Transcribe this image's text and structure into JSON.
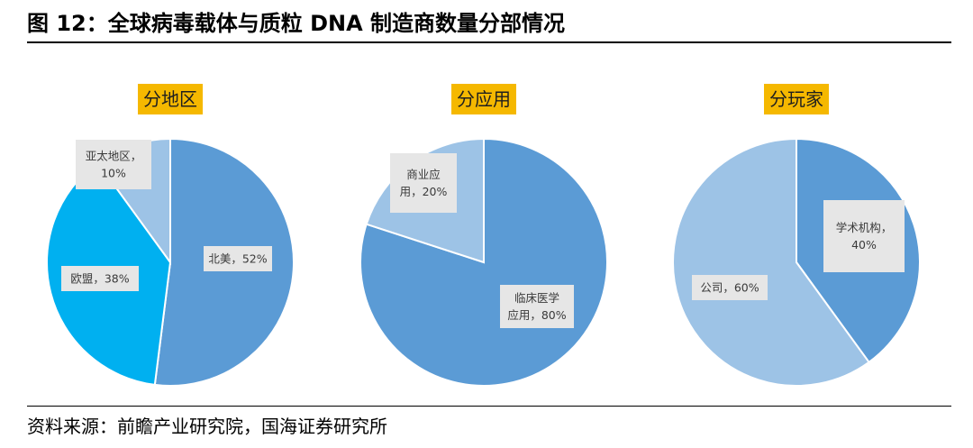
{
  "figure": {
    "title": "图 12：全球病毒载体与质粒 DNA 制造商数量分部情况",
    "source": "资料来源：前瞻产业研究院，国海证券研究所"
  },
  "colors": {
    "title_box": "#f5b800",
    "label_box": "#e6e6e6"
  },
  "chart_data": [
    {
      "type": "pie",
      "title": "分地区",
      "slices": [
        {
          "label": "北美",
          "value": 52,
          "text": "北美，52%",
          "color": "#5b9bd5"
        },
        {
          "label": "欧盟",
          "value": 38,
          "text": "欧盟，38%",
          "color": "#00b0f0"
        },
        {
          "label": "亚太地区",
          "value": 10,
          "text": "亚太地区，10%",
          "color": "#9dc3e6"
        }
      ]
    },
    {
      "type": "pie",
      "title": "分应用",
      "slices": [
        {
          "label": "临床医学应用",
          "value": 80,
          "text": "临床医学应用，80%",
          "color": "#5b9bd5"
        },
        {
          "label": "商业应用",
          "value": 20,
          "text": "商业应用，20%",
          "color": "#9dc3e6"
        }
      ]
    },
    {
      "type": "pie",
      "title": "分玩家",
      "slices": [
        {
          "label": "学术机构",
          "value": 40,
          "text": "学术机构，40%",
          "color": "#5b9bd5"
        },
        {
          "label": "公司",
          "value": 60,
          "text": "公司，60%",
          "color": "#9dc3e6"
        }
      ]
    }
  ]
}
